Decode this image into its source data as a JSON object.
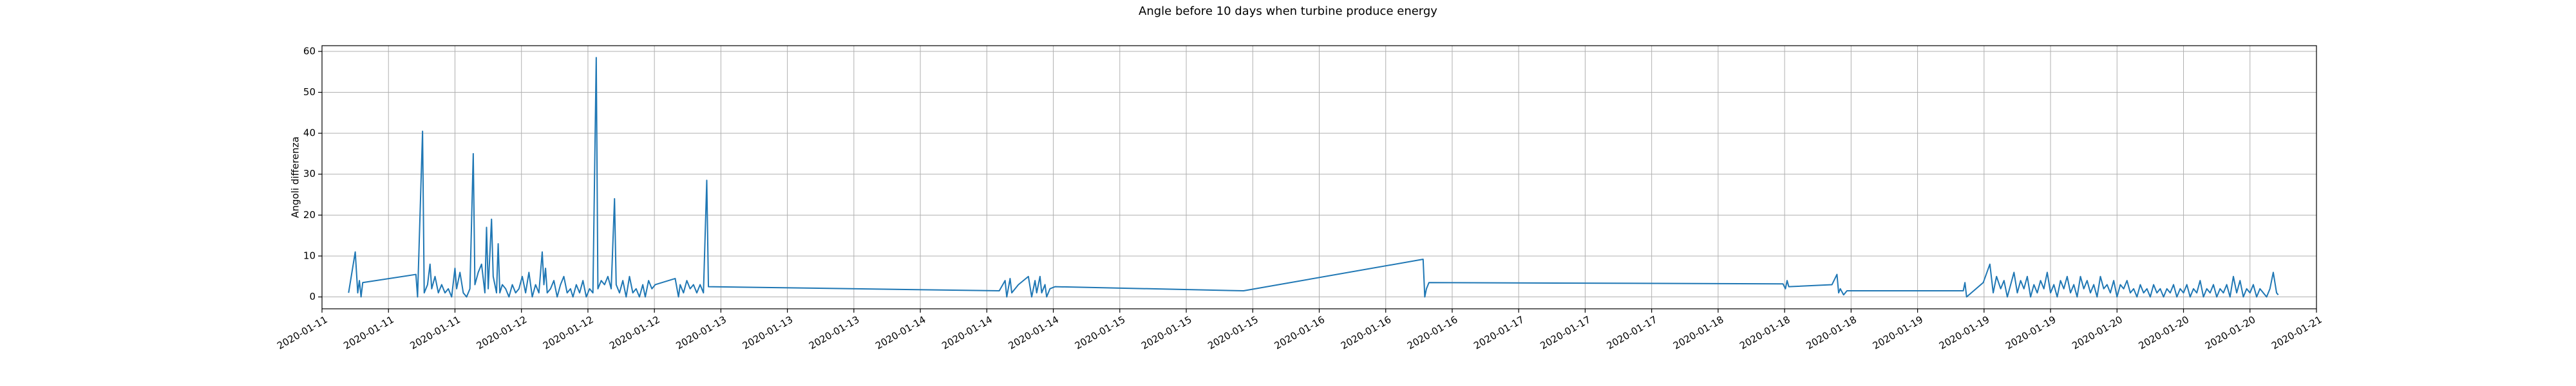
{
  "chart_data": {
    "type": "line",
    "title": "Angle before 10 days when turbine produce energy",
    "ylabel": "Angoli differenza",
    "color": "#1f77b4",
    "grid": true,
    "xlim": [
      0,
      240
    ],
    "ylim": [
      -2.9,
      61.4
    ],
    "yticks": [
      0,
      10,
      20,
      30,
      40,
      50,
      60
    ],
    "xticks": [
      {
        "value": 0,
        "label": "2020-01-11"
      },
      {
        "value": 8,
        "label": "2020-01-11"
      },
      {
        "value": 16,
        "label": "2020-01-11"
      },
      {
        "value": 24,
        "label": "2020-01-12"
      },
      {
        "value": 32,
        "label": "2020-01-12"
      },
      {
        "value": 40,
        "label": "2020-01-12"
      },
      {
        "value": 48,
        "label": "2020-01-13"
      },
      {
        "value": 56,
        "label": "2020-01-13"
      },
      {
        "value": 64,
        "label": "2020-01-13"
      },
      {
        "value": 72,
        "label": "2020-01-14"
      },
      {
        "value": 80,
        "label": "2020-01-14"
      },
      {
        "value": 88,
        "label": "2020-01-14"
      },
      {
        "value": 96,
        "label": "2020-01-15"
      },
      {
        "value": 104,
        "label": "2020-01-15"
      },
      {
        "value": 112,
        "label": "2020-01-15"
      },
      {
        "value": 120,
        "label": "2020-01-16"
      },
      {
        "value": 128,
        "label": "2020-01-16"
      },
      {
        "value": 136,
        "label": "2020-01-16"
      },
      {
        "value": 144,
        "label": "2020-01-17"
      },
      {
        "value": 152,
        "label": "2020-01-17"
      },
      {
        "value": 160,
        "label": "2020-01-17"
      },
      {
        "value": 168,
        "label": "2020-01-18"
      },
      {
        "value": 176,
        "label": "2020-01-18"
      },
      {
        "value": 184,
        "label": "2020-01-18"
      },
      {
        "value": 192,
        "label": "2020-01-19"
      },
      {
        "value": 200,
        "label": "2020-01-19"
      },
      {
        "value": 208,
        "label": "2020-01-19"
      },
      {
        "value": 216,
        "label": "2020-01-20"
      },
      {
        "value": 224,
        "label": "2020-01-20"
      },
      {
        "value": 232,
        "label": "2020-01-20"
      },
      {
        "value": 240,
        "label": "2020-01-21"
      }
    ],
    "x": [
      3.2,
      4.0,
      4.3,
      4.5,
      4.7,
      4.9,
      11.3,
      11.5,
      12.1,
      12.3,
      12.7,
      13.0,
      13.2,
      13.6,
      14.0,
      14.4,
      14.8,
      15.2,
      15.6,
      16.0,
      16.2,
      16.6,
      17.0,
      17.4,
      17.8,
      18.2,
      18.4,
      18.8,
      19.2,
      19.6,
      19.8,
      20.0,
      20.4,
      20.6,
      21.0,
      21.2,
      21.4,
      21.7,
      22.1,
      22.5,
      22.9,
      23.3,
      23.7,
      24.1,
      24.5,
      24.9,
      25.3,
      25.7,
      26.1,
      26.5,
      26.7,
      26.9,
      27.1,
      27.5,
      27.9,
      28.3,
      28.7,
      29.1,
      29.5,
      29.9,
      30.2,
      30.6,
      31.0,
      31.4,
      31.8,
      32.2,
      32.6,
      33.0,
      33.2,
      33.6,
      34.0,
      34.4,
      34.8,
      35.2,
      35.4,
      35.8,
      36.2,
      36.6,
      37.0,
      37.4,
      37.8,
      38.2,
      38.6,
      38.9,
      39.3,
      39.7,
      40.1,
      42.5,
      42.9,
      43.1,
      43.5,
      43.9,
      44.3,
      44.7,
      45.1,
      45.5,
      45.9,
      46.3,
      46.5,
      81.5,
      82.2,
      82.4,
      82.8,
      83.0,
      83.8,
      85.0,
      85.4,
      85.8,
      86.0,
      86.4,
      86.6,
      87.0,
      87.2,
      87.6,
      88.2,
      110.9,
      132.5,
      132.7,
      132.9,
      133.2,
      175.8,
      176.1,
      176.3,
      176.5,
      181.7,
      182.3,
      182.5,
      182.7,
      183.1,
      183.5,
      197.5,
      197.7,
      197.9,
      199.9,
      200.7,
      201.1,
      201.5,
      202.0,
      202.4,
      202.8,
      203.2,
      203.6,
      204.0,
      204.4,
      204.8,
      205.2,
      205.6,
      206.0,
      206.4,
      206.8,
      207.2,
      207.6,
      208.0,
      208.4,
      208.8,
      209.2,
      209.6,
      210.0,
      210.4,
      210.8,
      211.2,
      211.6,
      212.0,
      212.4,
      212.8,
      213.2,
      213.6,
      214.0,
      214.4,
      214.8,
      215.2,
      215.6,
      216.0,
      216.4,
      216.8,
      217.2,
      217.6,
      218.0,
      218.4,
      218.8,
      219.2,
      219.6,
      220.0,
      220.4,
      220.8,
      221.2,
      221.6,
      222.0,
      222.4,
      222.8,
      223.2,
      223.6,
      224.0,
      224.4,
      224.8,
      225.2,
      225.6,
      226.0,
      226.4,
      226.8,
      227.2,
      227.6,
      228.0,
      228.4,
      228.8,
      229.2,
      229.6,
      230.0,
      230.4,
      230.8,
      231.2,
      231.6,
      232.0,
      232.4,
      232.8,
      233.2,
      233.6,
      234.0,
      234.4,
      234.8,
      235.2,
      235.4
    ],
    "values": [
      1,
      11,
      1,
      4,
      0,
      3.5,
      5.5,
      0,
      40.5,
      1,
      3,
      8,
      2,
      5,
      1,
      3,
      1,
      2,
      0,
      7,
      2,
      6,
      1,
      0,
      2,
      35,
      3,
      6,
      8,
      1,
      17,
      2,
      19,
      5,
      1,
      13,
      1,
      3,
      2,
      0,
      3,
      1,
      2,
      5,
      1,
      6,
      0,
      3,
      1,
      11,
      3,
      7,
      1,
      2,
      4,
      0,
      3,
      5,
      1,
      2,
      0,
      3,
      1,
      4,
      0,
      2,
      1,
      58.5,
      2,
      4,
      3,
      5,
      2,
      24,
      3,
      1,
      4,
      0,
      5,
      1,
      2,
      0,
      3,
      0,
      4,
      2,
      3,
      4.5,
      0,
      3,
      1,
      4,
      2,
      3,
      1,
      3,
      1,
      28.5,
      2.5,
      1.5,
      4,
      0,
      4.5,
      1,
      3,
      5,
      0,
      4,
      1,
      5,
      1,
      3,
      0,
      2,
      2.5,
      1.5,
      9.2,
      0,
      2,
      3.5,
      3.2,
      2,
      4,
      2.5,
      3,
      5.5,
      1,
      2,
      0.5,
      1.5,
      1.5,
      3.5,
      0,
      3.5,
      8,
      1,
      5,
      2,
      4,
      0,
      3,
      6,
      1,
      4,
      2,
      5,
      0,
      3,
      1,
      4,
      2,
      6,
      1,
      3,
      0,
      4,
      2,
      5,
      1,
      3,
      0,
      5,
      2,
      4,
      1,
      3,
      0,
      5,
      2,
      3,
      1,
      4,
      0,
      3,
      2,
      4,
      1,
      2,
      0,
      3,
      1,
      2,
      0,
      3,
      1,
      2,
      0,
      2,
      1,
      3,
      0,
      2,
      1,
      3,
      0,
      2,
      1,
      4,
      0,
      2,
      1,
      3,
      0,
      2,
      1,
      3,
      0,
      5,
      1,
      4,
      0,
      2,
      1,
      3,
      0,
      2,
      1,
      0,
      2,
      6,
      1,
      0.5
    ]
  }
}
